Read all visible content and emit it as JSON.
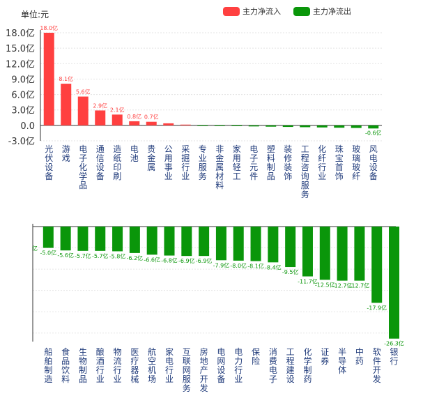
{
  "unit_label": "单位:元",
  "legend": [
    {
      "name": "主力净流入",
      "color": "#ff4040"
    },
    {
      "name": "主力净流出",
      "color": "#0a960a"
    }
  ],
  "colors": {
    "positive": "#ff4040",
    "negative": "#0a960a",
    "label_text": "#1f3a7a"
  },
  "chart_data": [
    {
      "type": "bar",
      "ylim": [
        -3,
        18
      ],
      "yticks": [
        "18.0亿",
        "15.0亿",
        "12.0亿",
        "9.0亿",
        "6.0亿",
        "3.0亿",
        "0.0",
        "-3.0亿"
      ],
      "ytick_values": [
        18,
        15,
        12,
        9,
        6,
        3,
        0,
        -3
      ],
      "grid": true,
      "categories": [
        "光伏设备",
        "游戏",
        "电子化学品",
        "通信设备",
        "造纸印刷",
        "电池",
        "贵金属",
        "公用事业",
        "采掘行业",
        "专业服务",
        "非金属材料",
        "家用轻工",
        "电子元件",
        "塑料制品",
        "装修装饰",
        "工程咨询服务",
        "化纤行业",
        "珠宝首饰",
        "玻璃玻纤",
        "风电设备"
      ],
      "values": [
        18.0,
        8.1,
        5.6,
        2.9,
        2.1,
        0.8,
        0.7,
        0.4,
        0.15,
        -0.05,
        -0.1,
        -0.15,
        -0.2,
        -0.25,
        -0.3,
        -0.35,
        -0.4,
        -0.45,
        -0.5,
        -0.6
      ],
      "value_labels": [
        "18.0亿",
        "8.1亿",
        "5.6亿",
        "2.9亿",
        "2.1亿",
        "0.8亿",
        "0.7亿",
        "",
        "",
        "",
        "",
        "",
        "",
        "",
        "",
        "",
        "",
        "",
        "",
        "-0.6亿"
      ]
    },
    {
      "type": "bar",
      "ylim": [
        -27,
        0
      ],
      "grid": true,
      "categories": [
        "船舶制造",
        "食品饮料",
        "生物制品",
        "酿酒行业",
        "物流行业",
        "医疗器械",
        "航空机场",
        "家电行业",
        "互联网服务",
        "房地产开发",
        "电网设备",
        "电力行业",
        "保险",
        "消费电子",
        "工程建设",
        "化学制药",
        "证券",
        "半导体",
        "中药",
        "软件开发",
        "银行"
      ],
      "values": [
        -5.0,
        -5.6,
        -5.7,
        -5.7,
        -5.8,
        -6.2,
        -6.6,
        -6.8,
        -6.9,
        -6.9,
        -7.9,
        -8.0,
        -8.1,
        -8.4,
        -9.5,
        -11.7,
        -12.5,
        -12.7,
        -12.7,
        -17.9,
        -26.3
      ],
      "value_labels": [
        "-5.0亿",
        "-5.6亿",
        "-5.7亿",
        "-5.7亿",
        "-5.8亿",
        "-6.2亿",
        "-6.6亿",
        "-6.8亿",
        "-6.9亿",
        "-6.9亿",
        "-7.9亿",
        "-8.0亿",
        "-8.1亿",
        "-8.4亿",
        "-9.5亿",
        "-11.7亿",
        "-12.5亿",
        "-12.7亿",
        "-12.7亿",
        "-17.9亿",
        "-26.3亿"
      ],
      "leading_label": "亿"
    }
  ]
}
